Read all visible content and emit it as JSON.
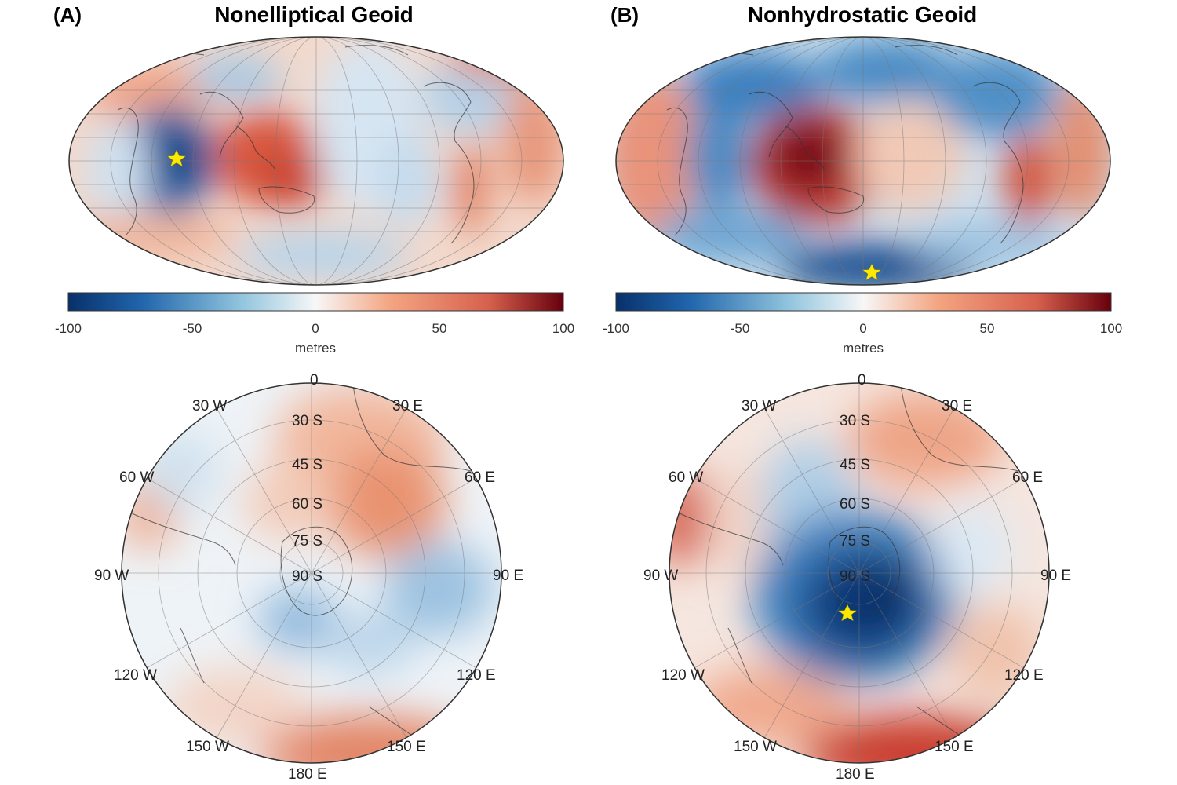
{
  "panels": [
    {
      "letter": "(A)",
      "title": "Nonelliptical Geoid",
      "colorbar": {
        "ticks": [
          "-100",
          "-50",
          "0",
          "50",
          "100"
        ],
        "unit": "metres"
      },
      "polar_labels": {
        "top": "0",
        "left30": "30  W",
        "right30": "30  E",
        "left60": "60  W",
        "right60": "60  E",
        "left90": "90  W",
        "right90": "90  E",
        "left120": "120  W",
        "right120": "120  E",
        "left150": "150  W",
        "right150": "150  E",
        "bottom": "180  E",
        "lat30": "30  S",
        "lat45": "45  S",
        "lat60": "60  S",
        "lat75": "75  S",
        "lat90": "90  S"
      }
    },
    {
      "letter": "(B)",
      "title": "Nonhydrostatic Geoid",
      "colorbar": {
        "ticks": [
          "-100",
          "-50",
          "0",
          "50",
          "100"
        ],
        "unit": "metres"
      },
      "polar_labels": {
        "top": "0",
        "left30": "30  W",
        "right30": "30  E",
        "left60": "60  W",
        "right60": "60  E",
        "left90": "90  W",
        "right90": "90  E",
        "left120": "120  W",
        "right120": "120  E",
        "left150": "150  W",
        "right150": "150  E",
        "bottom": "180  E",
        "lat30": "30  S",
        "lat45": "45  S",
        "lat60": "60  S",
        "lat75": "75  S",
        "lat90": "90  S"
      }
    }
  ],
  "colors": {
    "min": "#08306b",
    "mid": "#f7f7f7",
    "max": "#67000d"
  }
}
